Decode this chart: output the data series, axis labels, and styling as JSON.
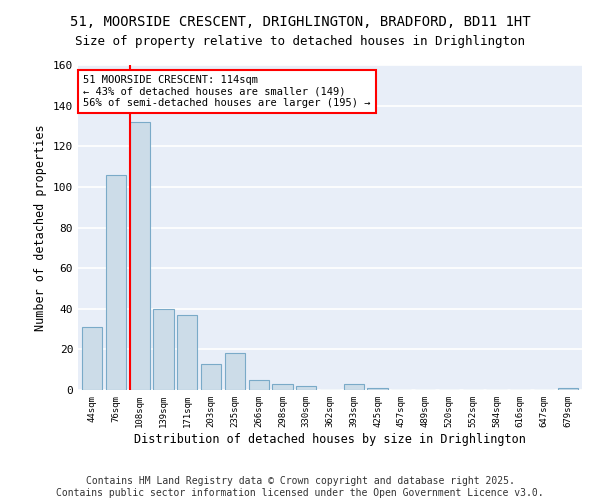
{
  "title_line1": "51, MOORSIDE CRESCENT, DRIGHLINGTON, BRADFORD, BD11 1HT",
  "title_line2": "Size of property relative to detached houses in Drighlington",
  "xlabel": "Distribution of detached houses by size in Drighlington",
  "ylabel": "Number of detached properties",
  "bar_color": "#ccdce8",
  "bar_edge_color": "#7aaac8",
  "background_color": "#e8eef8",
  "grid_color": "#ffffff",
  "categories": [
    "44sqm",
    "76sqm",
    "108sqm",
    "139sqm",
    "171sqm",
    "203sqm",
    "235sqm",
    "266sqm",
    "298sqm",
    "330sqm",
    "362sqm",
    "393sqm",
    "425sqm",
    "457sqm",
    "489sqm",
    "520sqm",
    "552sqm",
    "584sqm",
    "616sqm",
    "647sqm",
    "679sqm"
  ],
  "values": [
    31,
    106,
    132,
    40,
    37,
    13,
    18,
    5,
    3,
    2,
    0,
    3,
    1,
    0,
    0,
    0,
    0,
    0,
    0,
    0,
    1
  ],
  "ylim": [
    0,
    160
  ],
  "yticks": [
    0,
    20,
    40,
    60,
    80,
    100,
    120,
    140,
    160
  ],
  "property_label": "51 MOORSIDE CRESCENT: 114sqm",
  "annotation_line1": "← 43% of detached houses are smaller (149)",
  "annotation_line2": "56% of semi-detached houses are larger (195) →",
  "footer_text": "Contains HM Land Registry data © Crown copyright and database right 2025.\nContains public sector information licensed under the Open Government Licence v3.0.",
  "title_fontsize": 10,
  "subtitle_fontsize": 9,
  "annotation_fontsize": 7.5,
  "footer_fontsize": 7
}
